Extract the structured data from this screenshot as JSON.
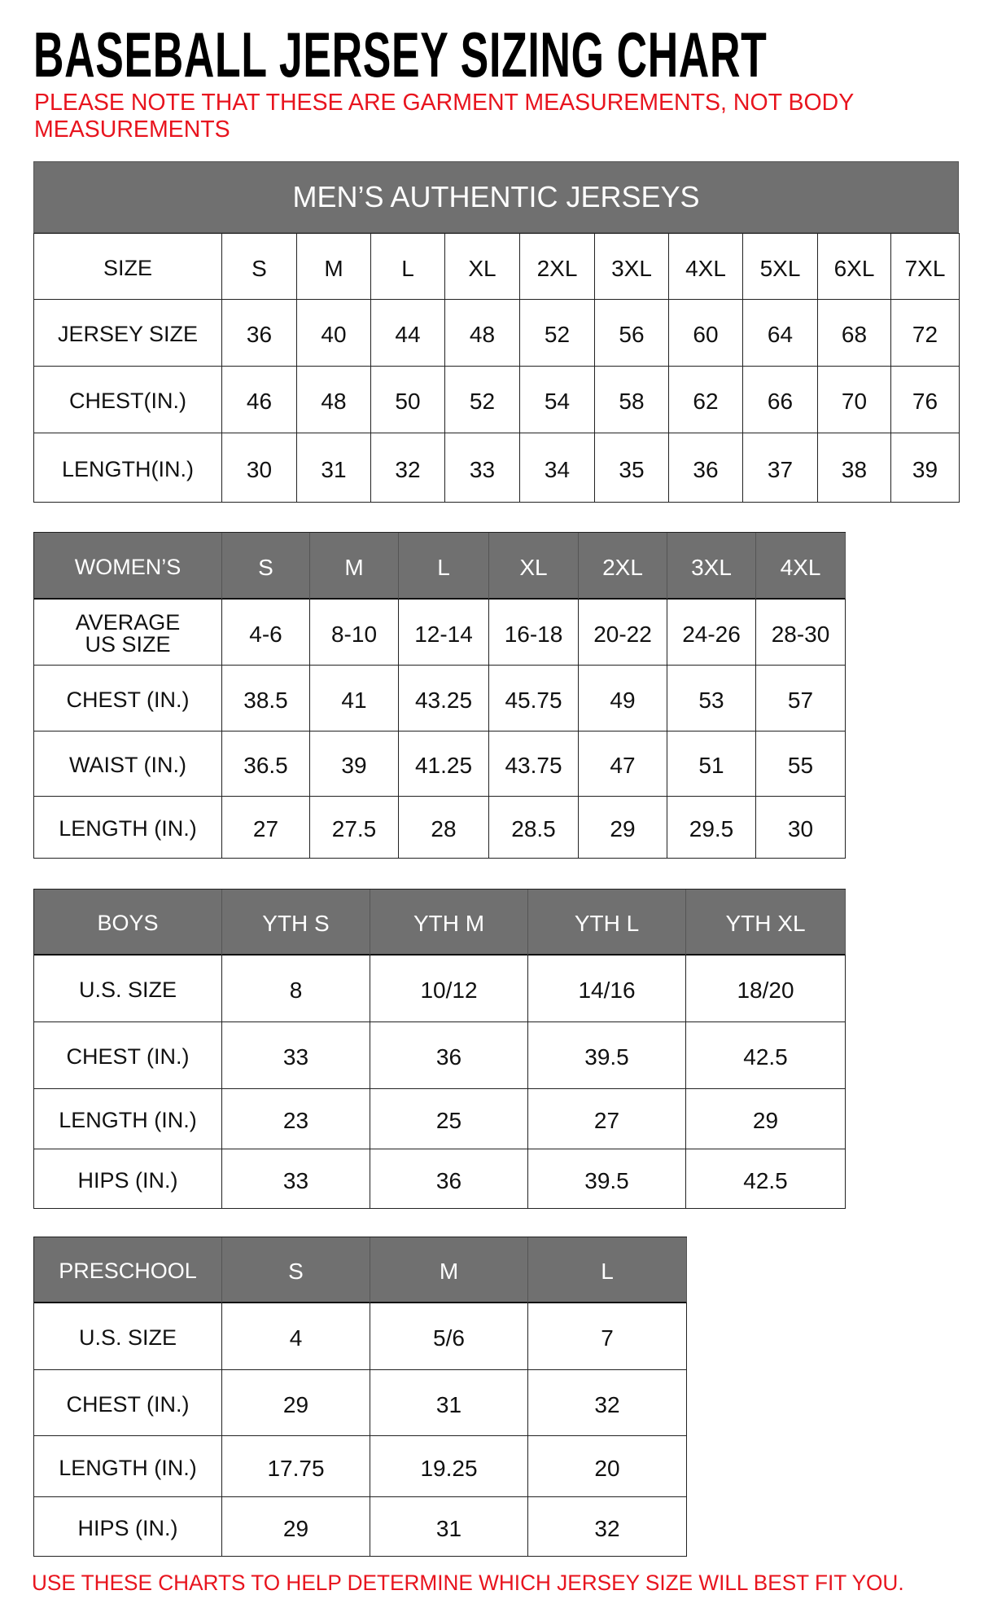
{
  "title": "BASEBALL JERSEY SIZING CHART",
  "note": "PLEASE NOTE THAT THESE ARE GARMENT MEASUREMENTS, NOT BODY MEASUREMENTS",
  "footer": "USE THESE CHARTS TO HELP DETERMINE WHICH JERSEY SIZE WILL BEST FIT YOU.",
  "colors": {
    "header_bg": "#707070",
    "note_red": "#e8141e"
  },
  "mens": {
    "heading": "MEN’S AUTHENTIC JERSEYS",
    "rows": [
      [
        "SIZE",
        "S",
        "M",
        "L",
        "XL",
        "2XL",
        "3XL",
        "4XL",
        "5XL",
        "6XL",
        "7XL"
      ],
      [
        "JERSEY SIZE",
        "36",
        "40",
        "44",
        "48",
        "52",
        "56",
        "60",
        "64",
        "68",
        "72"
      ],
      [
        "CHEST(IN.)",
        "46",
        "48",
        "50",
        "52",
        "54",
        "58",
        "62",
        "66",
        "70",
        "76"
      ],
      [
        "LENGTH(IN.)",
        "30",
        "31",
        "32",
        "33",
        "34",
        "35",
        "36",
        "37",
        "38",
        "39"
      ]
    ]
  },
  "womens": {
    "header": [
      "WOMEN’S",
      "S",
      "M",
      "L",
      "XL",
      "2XL",
      "3XL",
      "4XL"
    ],
    "rows": [
      [
        "AVERAGE US SIZE",
        "4-6",
        "8-10",
        "12-14",
        "16-18",
        "20-22",
        "24-26",
        "28-30"
      ],
      [
        "CHEST (IN.)",
        "38.5",
        "41",
        "43.25",
        "45.75",
        "49",
        "53",
        "57"
      ],
      [
        "WAIST (IN.)",
        "36.5",
        "39",
        "41.25",
        "43.75",
        "47",
        "51",
        "55"
      ],
      [
        "LENGTH (IN.)",
        "27",
        "27.5",
        "28",
        "28.5",
        "29",
        "29.5",
        "30"
      ]
    ]
  },
  "boys": {
    "header": [
      "BOYS",
      "YTH S",
      "YTH M",
      "YTH L",
      "YTH XL"
    ],
    "rows": [
      [
        "U.S. SIZE",
        "8",
        "10/12",
        "14/16",
        "18/20"
      ],
      [
        "CHEST (IN.)",
        "33",
        "36",
        "39.5",
        "42.5"
      ],
      [
        "LENGTH (IN.)",
        "23",
        "25",
        "27",
        "29"
      ],
      [
        "HIPS (IN.)",
        "33",
        "36",
        "39.5",
        "42.5"
      ]
    ]
  },
  "preschool": {
    "header": [
      "PRESCHOOL",
      "S",
      "M",
      "L"
    ],
    "rows": [
      [
        "U.S. SIZE",
        "4",
        "5/6",
        "7"
      ],
      [
        "CHEST (IN.)",
        "29",
        "31",
        "32"
      ],
      [
        "LENGTH (IN.)",
        "17.75",
        "19.25",
        "20"
      ],
      [
        "HIPS (IN.)",
        "29",
        "31",
        "32"
      ]
    ]
  }
}
